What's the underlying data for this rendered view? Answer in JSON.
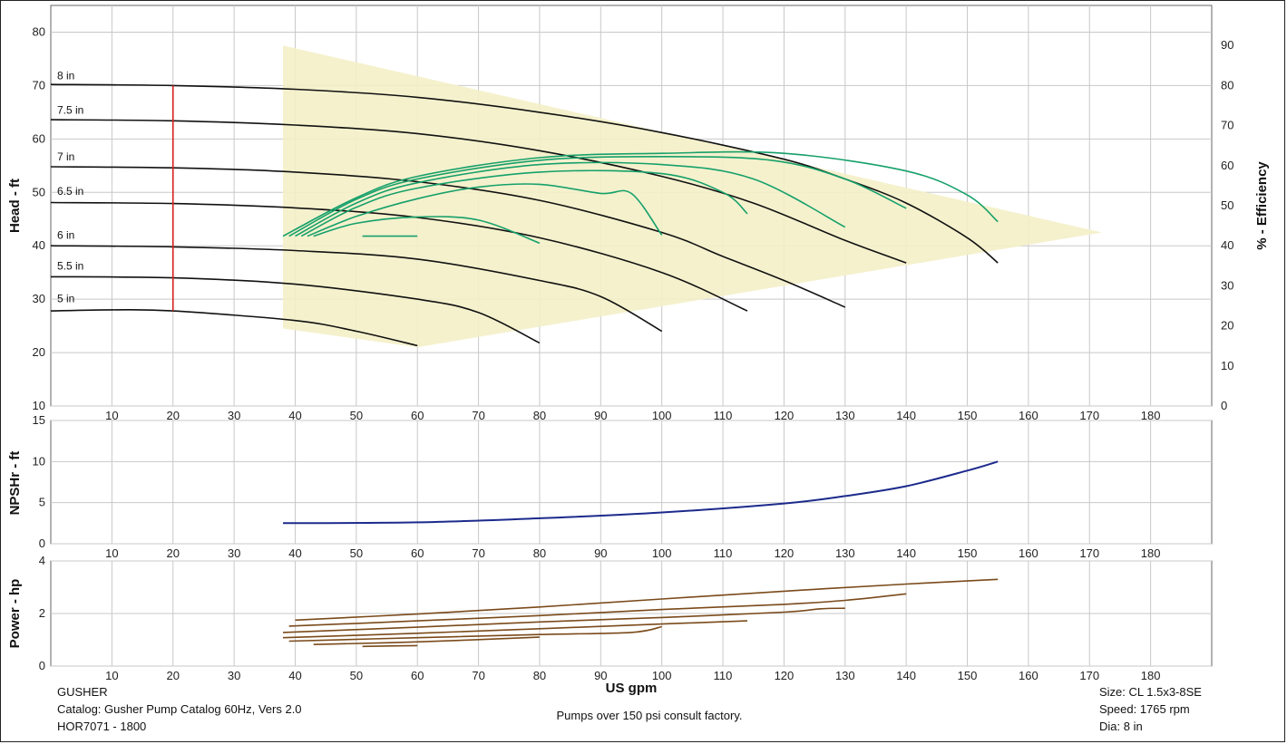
{
  "footer": {
    "left_lines": [
      "GUSHER",
      "Catalog: Gusher Pump Catalog 60Hz, Vers 2.0",
      "HOR7071 - 1800"
    ],
    "center_note": "Pumps over 150 psi consult factory.",
    "right_lines": [
      "Size: CL 1.5x3-8SE",
      "Speed: 1765 rpm",
      "Dia: 8 in"
    ]
  },
  "colors": {
    "head": "#111111",
    "efficiency": "#16a06a",
    "npsh": "#1c2a8c",
    "power": "#7a4a1a",
    "region": "#f4f0c8",
    "marker": "#d62020",
    "grid": "#c8c8c8"
  },
  "chart_data": [
    {
      "id": "head",
      "type": "line",
      "xlabel": "",
      "ylabel": "Head - ft",
      "y2label": "% - Efficiency",
      "xlim": [
        0,
        190
      ],
      "xticks": [
        10,
        20,
        30,
        40,
        50,
        60,
        70,
        80,
        90,
        100,
        110,
        120,
        130,
        140,
        150,
        160,
        170,
        180
      ],
      "ylim": [
        10,
        85
      ],
      "yticks": [
        10,
        20,
        30,
        40,
        50,
        60,
        70,
        80
      ],
      "y2lim": [
        0,
        100
      ],
      "y2ticks": [
        0,
        10,
        20,
        30,
        40,
        50,
        60,
        70,
        80,
        90
      ],
      "operating_region": [
        [
          38,
          77.5
        ],
        [
          172,
          42.5
        ],
        [
          60,
          21
        ],
        [
          38,
          24.5
        ]
      ],
      "marker": {
        "x": 20,
        "y_from": 27.8,
        "y_to": 70
      },
      "grid": true,
      "series": [
        {
          "name": "8 in",
          "label_y": 71.2,
          "points": [
            [
              0,
              70.2
            ],
            [
              20,
              70
            ],
            [
              40,
              69.3
            ],
            [
              60,
              67.8
            ],
            [
              80,
              65
            ],
            [
              100,
              61.2
            ],
            [
              120,
              56.2
            ],
            [
              130,
              52.5
            ],
            [
              140,
              48
            ],
            [
              150,
              41.5
            ],
            [
              155,
              36.8
            ]
          ]
        },
        {
          "name": "7.5 in",
          "label_y": 64.7,
          "points": [
            [
              0,
              63.6
            ],
            [
              20,
              63.4
            ],
            [
              40,
              62.6
            ],
            [
              60,
              61
            ],
            [
              80,
              57.8
            ],
            [
              100,
              53
            ],
            [
              115,
              48
            ],
            [
              130,
              41
            ],
            [
              140,
              36.8
            ]
          ]
        },
        {
          "name": "7 in",
          "label_y": 56.0,
          "points": [
            [
              0,
              54.8
            ],
            [
              20,
              54.6
            ],
            [
              40,
              53.8
            ],
            [
              60,
              52
            ],
            [
              80,
              48.5
            ],
            [
              100,
              42.5
            ],
            [
              110,
              38
            ],
            [
              120,
              33.5
            ],
            [
              130,
              28.5
            ]
          ]
        },
        {
          "name": "6.5 in",
          "label_y": 49.5,
          "points": [
            [
              0,
              48.1
            ],
            [
              20,
              47.9
            ],
            [
              40,
              47.1
            ],
            [
              60,
              45.3
            ],
            [
              80,
              41.5
            ],
            [
              100,
              35
            ],
            [
              114,
              27.8
            ]
          ]
        },
        {
          "name": "6 in",
          "label_y": 41.3,
          "points": [
            [
              0,
              40
            ],
            [
              20,
              39.8
            ],
            [
              40,
              39.1
            ],
            [
              60,
              37.5
            ],
            [
              80,
              33.5
            ],
            [
              90,
              30.5
            ],
            [
              100,
              24
            ]
          ]
        },
        {
          "name": "5.5 in",
          "label_y": 35.5,
          "points": [
            [
              0,
              34.2
            ],
            [
              20,
              34
            ],
            [
              40,
              32.8
            ],
            [
              60,
              30
            ],
            [
              70,
              27.5
            ],
            [
              80,
              21.8
            ]
          ]
        },
        {
          "name": "5 in",
          "label_y": 29.4,
          "points": [
            [
              0,
              27.8
            ],
            [
              10,
              28
            ],
            [
              20,
              27.8
            ],
            [
              40,
              26
            ],
            [
              50,
              24
            ],
            [
              60,
              21.3
            ]
          ]
        }
      ],
      "efficiency_series": [
        {
          "points": [
            [
              38,
              41.8
            ],
            [
              50,
              49
            ],
            [
              60,
              53
            ],
            [
              80,
              56.5
            ],
            [
              100,
              57.3
            ],
            [
              120,
              57.3
            ],
            [
              140,
              54
            ],
            [
              150,
              49.5
            ],
            [
              155,
              44.5
            ]
          ]
        },
        {
          "points": [
            [
              39,
              41.8
            ],
            [
              50,
              48.7
            ],
            [
              60,
              52.5
            ],
            [
              80,
              56
            ],
            [
              100,
              56.7
            ],
            [
              118,
              56
            ],
            [
              130,
              52.5
            ],
            [
              140,
              47
            ]
          ]
        },
        {
          "points": [
            [
              40,
              41.8
            ],
            [
              50,
              48
            ],
            [
              60,
              51.8
            ],
            [
              80,
              55.2
            ],
            [
              100,
              55.2
            ],
            [
              115,
              52.5
            ],
            [
              130,
              43.5
            ]
          ]
        },
        {
          "points": [
            [
              41,
              41.8
            ],
            [
              50,
              47.2
            ],
            [
              60,
              50.8
            ],
            [
              80,
              53.8
            ],
            [
              100,
              53.5
            ],
            [
              110,
              50
            ],
            [
              114,
              46
            ]
          ]
        },
        {
          "points": [
            [
              42,
              41.8
            ],
            [
              50,
              45.5
            ],
            [
              60,
              48.8
            ],
            [
              70,
              51
            ],
            [
              80,
              51.5
            ],
            [
              90,
              49.8
            ],
            [
              95,
              49.8
            ],
            [
              100,
              42
            ]
          ]
        },
        {
          "points": [
            [
              43,
              41.8
            ],
            [
              50,
              44.2
            ],
            [
              60,
              45.4
            ],
            [
              70,
              44.8
            ],
            [
              80,
              40.5
            ]
          ]
        },
        {
          "points": [
            [
              51,
              41.8
            ],
            [
              60,
              41.8
            ]
          ]
        }
      ]
    },
    {
      "id": "npsh",
      "type": "line",
      "xlabel": "",
      "ylabel": "NPSHr - ft",
      "xlim": [
        0,
        190
      ],
      "xticks": [
        10,
        20,
        30,
        40,
        50,
        60,
        70,
        80,
        90,
        100,
        110,
        120,
        130,
        140,
        150,
        160,
        170,
        180
      ],
      "ylim": [
        0,
        15
      ],
      "yticks": [
        0,
        5,
        10,
        15
      ],
      "grid": true,
      "series": [
        {
          "points": [
            [
              38,
              2.5
            ],
            [
              60,
              2.6
            ],
            [
              80,
              3.1
            ],
            [
              100,
              3.8
            ],
            [
              120,
              4.9
            ],
            [
              130,
              5.8
            ],
            [
              140,
              7
            ],
            [
              150,
              8.9
            ],
            [
              155,
              10
            ]
          ]
        }
      ]
    },
    {
      "id": "power",
      "type": "line",
      "xlabel": "US gpm",
      "ylabel": "Power - hp",
      "xlim": [
        0,
        190
      ],
      "xticks": [
        10,
        20,
        30,
        40,
        50,
        60,
        70,
        80,
        90,
        100,
        110,
        120,
        130,
        140,
        150,
        160,
        170,
        180
      ],
      "ylim": [
        0,
        4
      ],
      "yticks": [
        0,
        2,
        4
      ],
      "grid": true,
      "series": [
        {
          "points": [
            [
              40,
              1.75
            ],
            [
              60,
              1.98
            ],
            [
              80,
              2.25
            ],
            [
              100,
              2.55
            ],
            [
              120,
              2.85
            ],
            [
              140,
              3.12
            ],
            [
              155,
              3.3
            ]
          ]
        },
        {
          "points": [
            [
              39,
              1.52
            ],
            [
              60,
              1.72
            ],
            [
              80,
              1.92
            ],
            [
              100,
              2.15
            ],
            [
              120,
              2.35
            ],
            [
              130,
              2.5
            ],
            [
              140,
              2.75
            ]
          ]
        },
        {
          "points": [
            [
              38,
              1.28
            ],
            [
              60,
              1.48
            ],
            [
              80,
              1.68
            ],
            [
              100,
              1.85
            ],
            [
              120,
              2.05
            ],
            [
              126,
              2.18
            ],
            [
              130,
              2.2
            ]
          ]
        },
        {
          "points": [
            [
              38,
              1.08
            ],
            [
              60,
              1.25
            ],
            [
              80,
              1.42
            ],
            [
              100,
              1.6
            ],
            [
              114,
              1.72
            ]
          ]
        },
        {
          "points": [
            [
              39,
              0.95
            ],
            [
              60,
              1.08
            ],
            [
              80,
              1.2
            ],
            [
              95,
              1.28
            ],
            [
              100,
              1.5
            ]
          ]
        },
        {
          "points": [
            [
              43,
              0.82
            ],
            [
              60,
              0.92
            ],
            [
              80,
              1.1
            ]
          ]
        },
        {
          "points": [
            [
              51,
              0.75
            ],
            [
              60,
              0.78
            ]
          ]
        }
      ]
    }
  ]
}
